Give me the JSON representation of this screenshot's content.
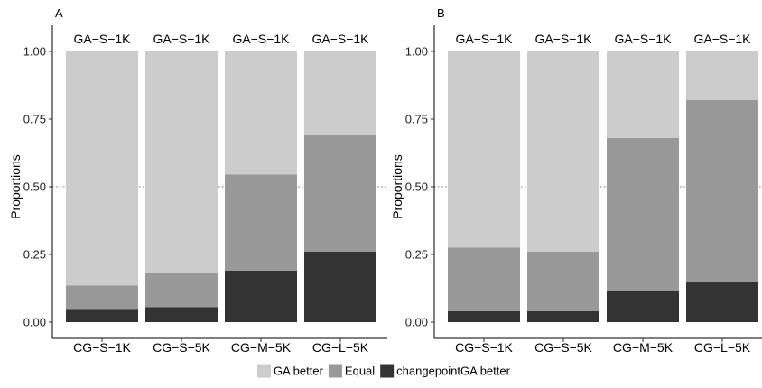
{
  "chart_data": [
    {
      "type": "bar",
      "stacked": true,
      "panel_label": "A",
      "ylabel": "Proportions",
      "ylim": [
        0,
        1
      ],
      "yticks": [
        "0.00",
        "0.25",
        "0.50",
        "0.75",
        "1.00"
      ],
      "reference_line": {
        "y": 0.5,
        "style": "dotted",
        "color": "#d9534f"
      },
      "top_labels": [
        "GA−S−1K",
        "GA−S−1K",
        "GA−S−1K",
        "GA−S−1K"
      ],
      "categories": [
        "CG−S−1K",
        "CG−S−5K",
        "CG−M−5K",
        "CG−L−5K"
      ],
      "series": [
        {
          "name": "changepointGA better",
          "color": "#333333",
          "values": [
            0.045,
            0.055,
            0.19,
            0.26
          ]
        },
        {
          "name": "Equal",
          "color": "#999999",
          "values": [
            0.09,
            0.125,
            0.355,
            0.43
          ]
        },
        {
          "name": "GA better",
          "color": "#cccccc",
          "values": [
            0.865,
            0.82,
            0.455,
            0.31
          ]
        }
      ]
    },
    {
      "type": "bar",
      "stacked": true,
      "panel_label": "B",
      "ylabel": "Proportions",
      "ylim": [
        0,
        1
      ],
      "yticks": [
        "0.00",
        "0.25",
        "0.50",
        "0.75",
        "1.00"
      ],
      "reference_line": {
        "y": 0.5,
        "style": "dotted",
        "color": "#d9534f"
      },
      "top_labels": [
        "GA−S−1K",
        "GA−S−1K",
        "GA−S−1K",
        "GA−S−1K"
      ],
      "categories": [
        "CG−S−1K",
        "CG−S−5K",
        "CG−M−5K",
        "CG−L−5K"
      ],
      "series": [
        {
          "name": "changepointGA better",
          "color": "#333333",
          "values": [
            0.04,
            0.04,
            0.115,
            0.15
          ]
        },
        {
          "name": "Equal",
          "color": "#999999",
          "values": [
            0.235,
            0.22,
            0.565,
            0.67
          ]
        },
        {
          "name": "GA better",
          "color": "#cccccc",
          "values": [
            0.725,
            0.74,
            0.32,
            0.18
          ]
        }
      ]
    }
  ],
  "legend": {
    "position": "bottom",
    "items": [
      {
        "label": "GA better",
        "color": "#cccccc"
      },
      {
        "label": "Equal",
        "color": "#999999"
      },
      {
        "label": "changepointGA better",
        "color": "#333333"
      }
    ]
  }
}
